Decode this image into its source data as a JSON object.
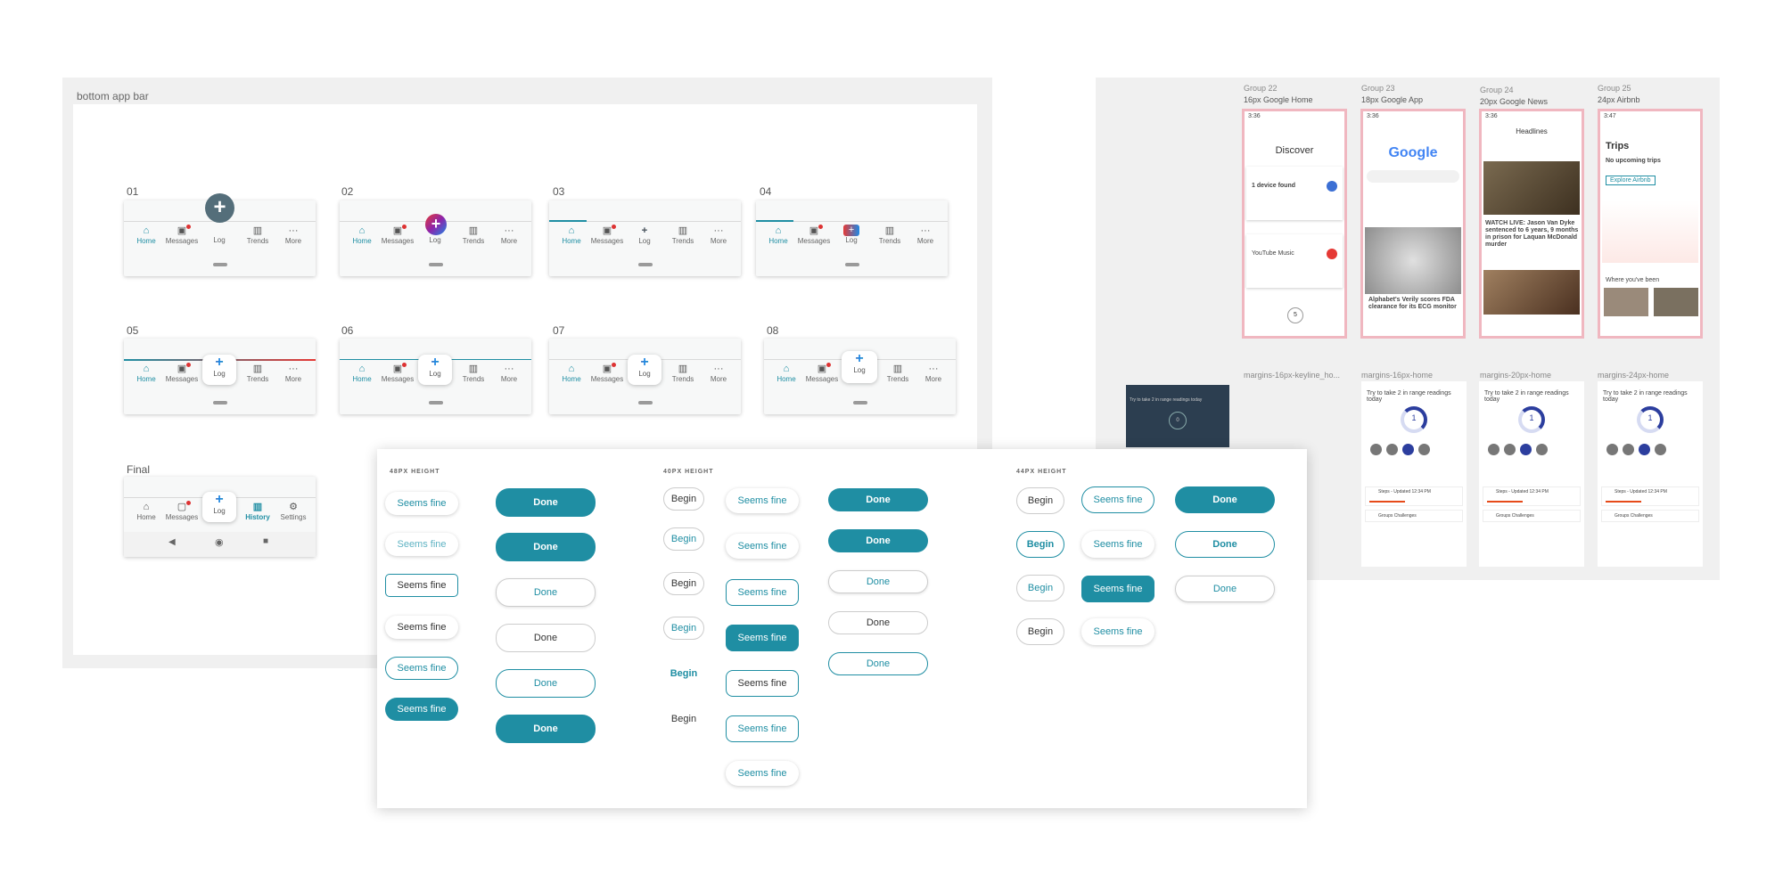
{
  "left_frame": {
    "title": "bottom app bar",
    "variants": [
      {
        "label": "01"
      },
      {
        "label": "02"
      },
      {
        "label": "03"
      },
      {
        "label": "04"
      },
      {
        "label": "05"
      },
      {
        "label": "06"
      },
      {
        "label": "07"
      },
      {
        "label": "08"
      },
      {
        "label": "Final"
      }
    ],
    "nav": {
      "home": "Home",
      "messages": "Messages",
      "log": "Log",
      "trends": "Trends",
      "more": "More"
    },
    "final_nav": {
      "home": "Home",
      "messages": "Messages",
      "log": "Log",
      "history": "History",
      "settings": "Settings"
    },
    "colors": {
      "accent": "#1f8ea3",
      "fab_dark": "#546e7a",
      "badge": "#d33333"
    }
  },
  "buttons_panel": {
    "h48": "48PX HEIGHT",
    "h40": "40PX HEIGHT",
    "h44": "44PX HEIGHT",
    "seems_fine": "Seems fine",
    "done": "Done",
    "begin": "Begin"
  },
  "right_frame": {
    "groups": [
      {
        "group": "Group 22",
        "desc": "16px Google Home"
      },
      {
        "group": "Group 23",
        "desc": "18px Google App"
      },
      {
        "group": "Group 24",
        "desc": "20px Google News"
      },
      {
        "group": "Group 25",
        "desc": "24px Airbnb"
      }
    ],
    "margins": [
      "margins-16px-keyline_ho...",
      "margins-16px-home",
      "margins-20px-home",
      "margins-24px-home"
    ],
    "screens": {
      "discover": "Discover",
      "device_found": "1 device found",
      "youtube_music": "YouTube Music",
      "google": "Google",
      "verily": "Alphabet's Verily scores FDA clearance for its ECG monitor",
      "headlines": "Headlines",
      "news_headline": "WATCH LIVE: Jason Van Dyke sentenced to 6 years, 9 months in prison for Laquan McDonald murder",
      "trips": "Trips",
      "no_trips": "No upcoming trips",
      "explore": "Explore Airbnb",
      "where_been": "Where you've been",
      "try_take": "Try to take 2 in range readings today",
      "ring_value": "1",
      "dark_ring_value": "0",
      "steps": "Steps - Updated 12:34 PM",
      "challenges": "Groups Challenges"
    }
  }
}
